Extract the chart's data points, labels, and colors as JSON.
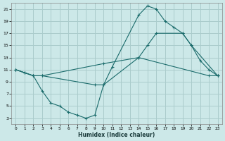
{
  "xlabel": "Humidex (Indice chaleur)",
  "bg_color": "#cce8e8",
  "grid_color": "#aacccc",
  "line_color": "#1a6b6b",
  "xlim": [
    -0.5,
    23.5
  ],
  "ylim": [
    2,
    22
  ],
  "xticks": [
    0,
    1,
    2,
    3,
    4,
    5,
    6,
    7,
    8,
    9,
    10,
    11,
    12,
    13,
    14,
    15,
    16,
    17,
    18,
    19,
    20,
    21,
    22,
    23
  ],
  "yticks": [
    3,
    5,
    7,
    9,
    11,
    13,
    15,
    17,
    19,
    21
  ],
  "line1_x": [
    0,
    1,
    2,
    3,
    4,
    5,
    6,
    7,
    8,
    9,
    10,
    11,
    14,
    15,
    16,
    17,
    18,
    19,
    20,
    21,
    22,
    23
  ],
  "line1_y": [
    11,
    10.5,
    10,
    7.5,
    5.5,
    5,
    4,
    3.5,
    3,
    3.5,
    8.5,
    11.5,
    20,
    21.5,
    21,
    19,
    18,
    17,
    15,
    12.5,
    11,
    10
  ],
  "line2_x": [
    0,
    2,
    3,
    10,
    14,
    15,
    16,
    19,
    20,
    23
  ],
  "line2_y": [
    11,
    10,
    10,
    12,
    13,
    15,
    17,
    17,
    15,
    10
  ],
  "line3_x": [
    0,
    1,
    2,
    3,
    9,
    10,
    14,
    22,
    23
  ],
  "line3_y": [
    11,
    10.5,
    10,
    10,
    8.5,
    8.5,
    13,
    10,
    10
  ]
}
